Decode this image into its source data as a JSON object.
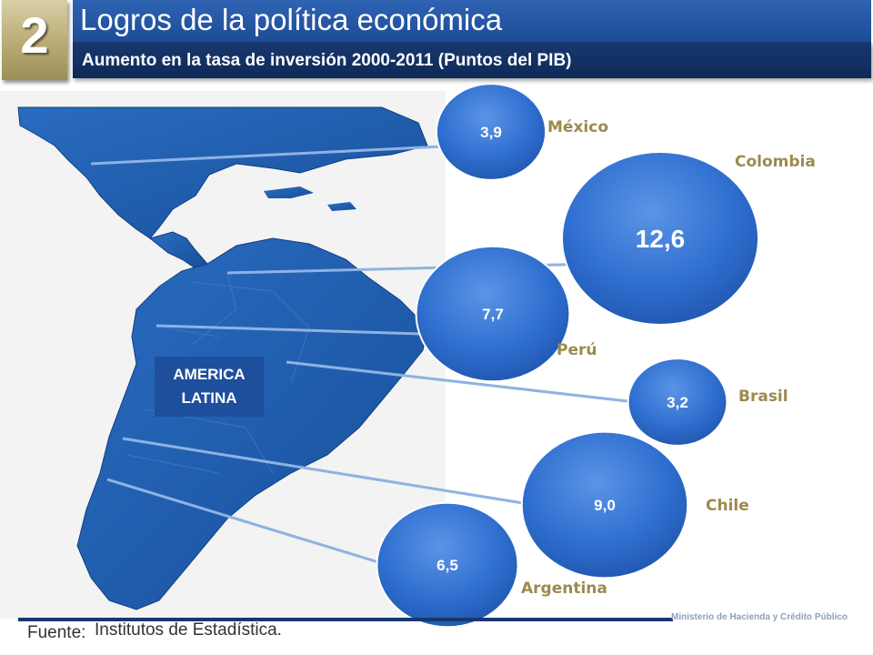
{
  "header": {
    "section_number": "2",
    "title": "Logros de la política económica",
    "subtitle": "Aumento en la tasa de inversión 2000-2011 (Puntos del PIB)"
  },
  "map": {
    "region_label_line1": "AMERICA",
    "region_label_line2": "LATINA"
  },
  "chart_data": {
    "type": "bubble",
    "title": "Aumento en la tasa de inversión 2000-2011 (Puntos del PIB)",
    "unit": "Puntos del PIB",
    "categories": [
      "México",
      "Colombia",
      "Perú",
      "Brasil",
      "Chile",
      "Argentina"
    ],
    "values": [
      3.9,
      12.6,
      7.7,
      3.2,
      9.0,
      6.5
    ],
    "value_labels": [
      "3,9",
      "12,6",
      "7,7",
      "3,2",
      "9,0",
      "6,5"
    ],
    "bubble_color": "#2f6fd0"
  },
  "footer": {
    "source_label": "Fuente:",
    "source_text": "Institutos de Estadística.",
    "ministry": "Ministerio de Hacienda y Crédito Público"
  },
  "colors": {
    "title_bar": "#2a5db0",
    "subtitle_bar": "#17386f",
    "badge": "#b9ab74",
    "map": "#1e5aa8",
    "country_label": "#9c8a4e"
  }
}
